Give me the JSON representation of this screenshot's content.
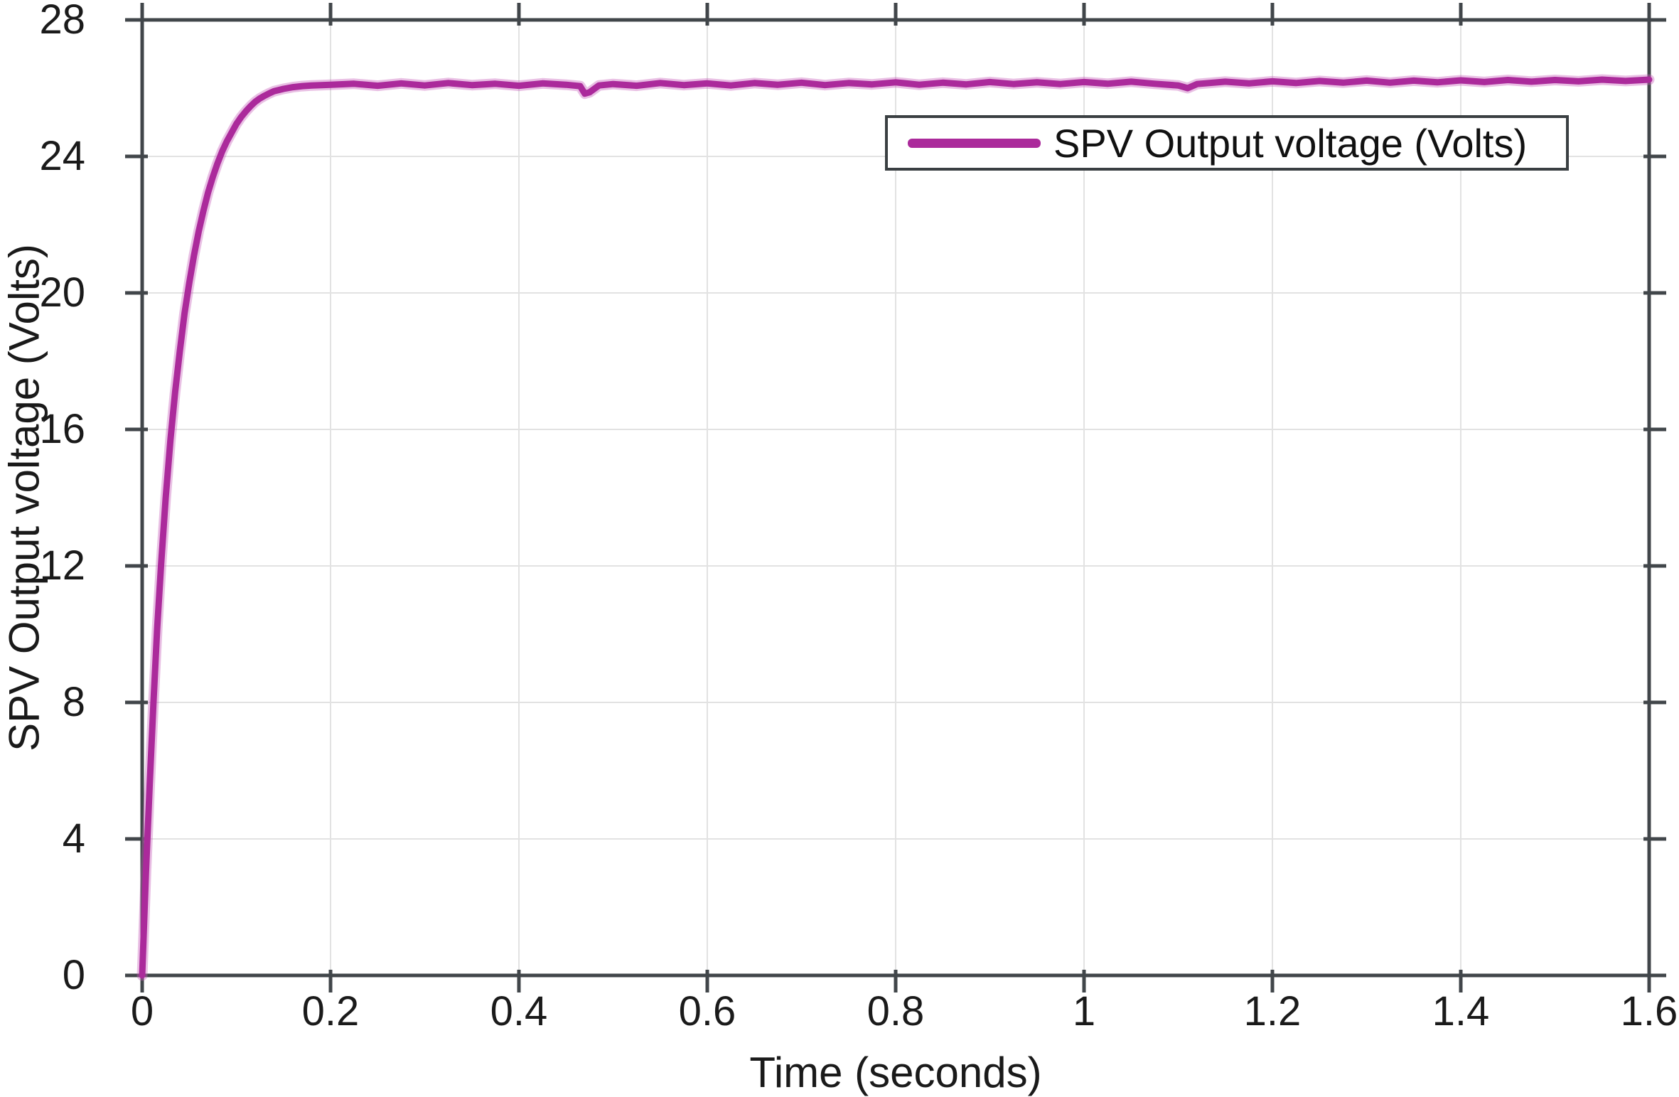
{
  "chart_data": {
    "type": "line",
    "title": "",
    "xlabel": "Time (seconds)",
    "ylabel": "SPV Output voltage (Volts)",
    "xlim": [
      0,
      1.6
    ],
    "ylim": [
      0,
      28
    ],
    "x_ticks": [
      0,
      0.2,
      0.4,
      0.6,
      0.8,
      1,
      1.2,
      1.4,
      1.6
    ],
    "x_tick_labels": [
      "0",
      "0.2",
      "0.4",
      "0.6",
      "0.8",
      "1",
      "1.2",
      "1.4",
      "1.6"
    ],
    "y_ticks": [
      0,
      4,
      8,
      12,
      16,
      20,
      24,
      28
    ],
    "y_tick_labels": [
      "0",
      "4",
      "8",
      "12",
      "16",
      "20",
      "24",
      "28"
    ],
    "grid": true,
    "legend": {
      "position": "upper-right",
      "entries": [
        {
          "label": "SPV Output voltage (Volts)",
          "color": "#AB2A9B"
        }
      ]
    },
    "colors": {
      "line": "#AB2A9B",
      "line_halo": "#C861BC",
      "axis": "#41464a",
      "grid": "#e2e2e2",
      "text": "#1a1a1a",
      "legend_border": "#3a3f42"
    },
    "series": [
      {
        "name": "SPV Output voltage (Volts)",
        "color": "#AB2A9B",
        "points": [
          [
            0,
            0
          ],
          [
            0.004,
            3.0
          ],
          [
            0.008,
            5.6
          ],
          [
            0.012,
            8.0
          ],
          [
            0.016,
            10.2
          ],
          [
            0.02,
            12.0
          ],
          [
            0.025,
            14.0
          ],
          [
            0.03,
            15.7
          ],
          [
            0.035,
            17.1
          ],
          [
            0.04,
            18.3
          ],
          [
            0.045,
            19.4
          ],
          [
            0.05,
            20.3
          ],
          [
            0.055,
            21.1
          ],
          [
            0.06,
            21.8
          ],
          [
            0.065,
            22.4
          ],
          [
            0.07,
            22.95
          ],
          [
            0.075,
            23.4
          ],
          [
            0.08,
            23.8
          ],
          [
            0.085,
            24.15
          ],
          [
            0.09,
            24.45
          ],
          [
            0.095,
            24.7
          ],
          [
            0.1,
            24.95
          ],
          [
            0.105,
            25.15
          ],
          [
            0.11,
            25.32
          ],
          [
            0.115,
            25.47
          ],
          [
            0.12,
            25.6
          ],
          [
            0.125,
            25.7
          ],
          [
            0.13,
            25.78
          ],
          [
            0.135,
            25.85
          ],
          [
            0.14,
            25.91
          ],
          [
            0.15,
            25.98
          ],
          [
            0.16,
            26.03
          ],
          [
            0.17,
            26.06
          ],
          [
            0.18,
            26.08
          ],
          [
            0.19,
            26.09
          ],
          [
            0.2,
            26.1
          ],
          [
            0.225,
            26.13
          ],
          [
            0.25,
            26.07
          ],
          [
            0.275,
            26.14
          ],
          [
            0.3,
            26.08
          ],
          [
            0.325,
            26.15
          ],
          [
            0.35,
            26.09
          ],
          [
            0.375,
            26.13
          ],
          [
            0.4,
            26.07
          ],
          [
            0.425,
            26.14
          ],
          [
            0.45,
            26.1
          ],
          [
            0.465,
            26.06
          ],
          [
            0.47,
            25.84
          ],
          [
            0.475,
            25.88
          ],
          [
            0.485,
            26.08
          ],
          [
            0.5,
            26.12
          ],
          [
            0.525,
            26.07
          ],
          [
            0.55,
            26.15
          ],
          [
            0.575,
            26.09
          ],
          [
            0.6,
            26.14
          ],
          [
            0.625,
            26.08
          ],
          [
            0.65,
            26.15
          ],
          [
            0.675,
            26.1
          ],
          [
            0.7,
            26.16
          ],
          [
            0.725,
            26.09
          ],
          [
            0.75,
            26.15
          ],
          [
            0.775,
            26.11
          ],
          [
            0.8,
            26.17
          ],
          [
            0.825,
            26.1
          ],
          [
            0.85,
            26.16
          ],
          [
            0.875,
            26.11
          ],
          [
            0.9,
            26.18
          ],
          [
            0.925,
            26.12
          ],
          [
            0.95,
            26.17
          ],
          [
            0.975,
            26.12
          ],
          [
            1.0,
            26.18
          ],
          [
            1.025,
            26.13
          ],
          [
            1.05,
            26.19
          ],
          [
            1.075,
            26.13
          ],
          [
            1.1,
            26.08
          ],
          [
            1.11,
            26.0
          ],
          [
            1.12,
            26.12
          ],
          [
            1.15,
            26.19
          ],
          [
            1.175,
            26.14
          ],
          [
            1.2,
            26.2
          ],
          [
            1.225,
            26.15
          ],
          [
            1.25,
            26.21
          ],
          [
            1.275,
            26.16
          ],
          [
            1.3,
            26.22
          ],
          [
            1.325,
            26.16
          ],
          [
            1.35,
            26.22
          ],
          [
            1.375,
            26.17
          ],
          [
            1.4,
            26.23
          ],
          [
            1.425,
            26.18
          ],
          [
            1.45,
            26.24
          ],
          [
            1.475,
            26.19
          ],
          [
            1.5,
            26.24
          ],
          [
            1.525,
            26.2
          ],
          [
            1.55,
            26.25
          ],
          [
            1.575,
            26.21
          ],
          [
            1.6,
            26.25
          ]
        ]
      }
    ]
  }
}
